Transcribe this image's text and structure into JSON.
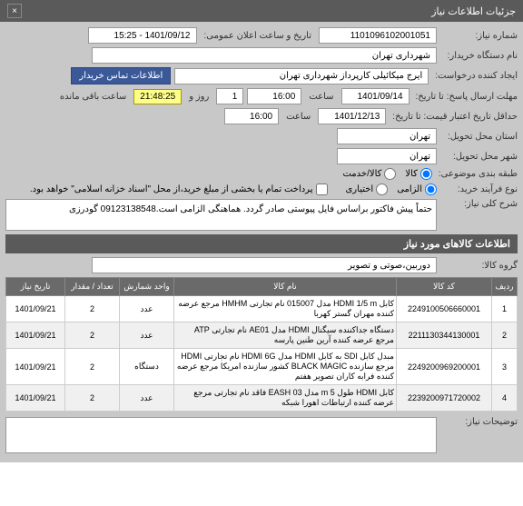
{
  "header": {
    "title": "جزئیات اطلاعات نیاز",
    "close": "×"
  },
  "fields": {
    "req_no_label": "شماره نیاز:",
    "req_no": "1101096102001051",
    "announce_label": "تاریخ و ساعت اعلان عمومی:",
    "announce": "1401/09/12 - 15:25",
    "org_name_label": "نام دستگاه خریدار:",
    "org_name": "شهرداری تهران",
    "requester_label": "ایجاد کننده درخواست:",
    "requester": "ایرج میکائیلی کارپرداز شهرداری تهران",
    "contact_btn": "اطلاعات تماس خریدار",
    "deadline_label": "مهلت ارسال پاسخ: تا تاریخ:",
    "deadline_date": "1401/09/14",
    "time_label": "ساعت",
    "deadline_time": "16:00",
    "days_label": "روز و",
    "days": "1",
    "remain_label": "ساعت باقی مانده",
    "remain_time": "21:48:25",
    "validity_label": "حداقل تاریخ اعتبار قیمت: تا تاریخ:",
    "validity_date": "1401/12/13",
    "validity_time": "16:00",
    "delivery_prov_label": "استان محل تحویل:",
    "delivery_prov": "تهران",
    "delivery_city_label": "شهر محل تحویل:",
    "delivery_city": "تهران",
    "category_label": "طبقه بندی موضوعی:",
    "cat_goods": "کالا",
    "cat_service": "کالا/خدمت",
    "process_label": "نوع فرآیند خرید:",
    "proc_mandatory": "الزامی",
    "proc_opt": "اختیاری",
    "note_text": "پرداخت تمام یا بخشی از مبلغ خرید،از محل \"اسناد خزانه اسلامی\" خواهد بود.",
    "desc_label": "شرح کلی نیاز:",
    "desc_text": "حتماً پیش فاکتور براساس فایل پیوستی صادر گردد.\nهماهنگی الزامی است.09123138548 گودرزی"
  },
  "items_section": {
    "title": "اطلاعات کالاهای مورد نیاز"
  },
  "group": {
    "label": "گروه کالا:",
    "value": "دوربین،صوتی و تصویر"
  },
  "table": {
    "headers": [
      "ردیف",
      "کد کالا",
      "نام کالا",
      "واحد شمارش",
      "تعداد / مقدار",
      "تاریخ نیاز"
    ],
    "rows": [
      [
        "1",
        "2249100506660001",
        "کابل HDMI 1/5 m مدل 015007 نام تجارتی HMНM مرجع عرضه کننده مهران گستر کهربا",
        "عدد",
        "2",
        "1401/09/21"
      ],
      [
        "2",
        "2211130344130001",
        "دستگاه جداکننده سیگنال HDMI مدل AE01 نام تجارتی ATP مرجع عرضه کننده آرین طنین پارسه",
        "عدد",
        "2",
        "1401/09/21"
      ],
      [
        "3",
        "2249200969200001",
        "مبدل کابل SDI به کابل HDMI مدل HDMI 6G نام تجارتی HDMI مرجع سازنده BLACK MAGIC کشور سازنده امریکا مرجع عرضه کننده فرابه کاران تصویر هفتم",
        "دستگاه",
        "2",
        "1401/09/21"
      ],
      [
        "4",
        "2239200971720002",
        "کابل HDMI طول m 5 مدل EASH 03 فاقد نام تجارتی مرجع عرضه کننده ارتباطات اهورا شبکه",
        "عدد",
        "2",
        "1401/09/21"
      ]
    ]
  },
  "footer": {
    "notes_label": "توضیحات نیاز:"
  }
}
